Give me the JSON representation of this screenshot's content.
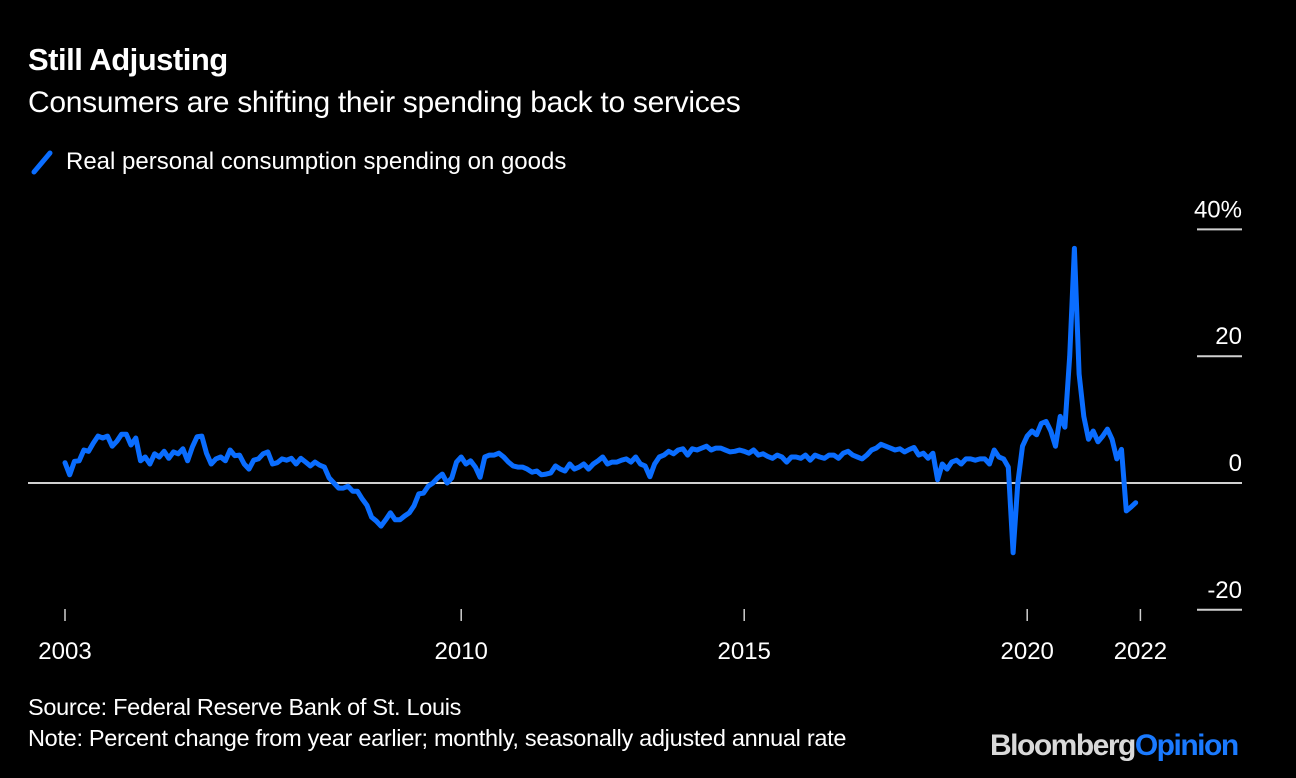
{
  "header": {
    "title": "Still Adjusting",
    "subtitle": "Consumers are shifting their spending back to services"
  },
  "footer": {
    "source": "Source: Federal Reserve Bank of St. Louis",
    "note": "Note: Percent change from year earlier; monthly, seasonally adjusted annual rate",
    "logo_part1": "Bloomberg",
    "logo_part2": "Opinion"
  },
  "colors": {
    "series": "#0a6dff",
    "background": "#000000",
    "axis": "#d0d0d0",
    "logo_accent": "#1a7aff"
  },
  "chart_data": {
    "type": "line",
    "title": "Still Adjusting",
    "subtitle": "Consumers are shifting their spending back to services",
    "xlabel": "",
    "ylabel": "",
    "y_unit": "%",
    "ylim": [
      -20,
      40
    ],
    "yticks": [
      40,
      20,
      0,
      -20
    ],
    "ytick_labels": [
      "40%",
      "20",
      "0",
      "-20"
    ],
    "xticks": [
      2003,
      2010,
      2015,
      2020,
      2022
    ],
    "xtick_labels": [
      "2003",
      "2010",
      "2015",
      "2020",
      "2022"
    ],
    "x_start": "2003-01",
    "x_frequency": "monthly",
    "legend_position": "top-left",
    "grid": false,
    "series": [
      {
        "name": "Real personal consumption spending on goods",
        "start": "2003-01",
        "values": [
          3.2,
          1.3,
          3.4,
          3.5,
          5.2,
          5.0,
          6.3,
          7.4,
          7.1,
          7.4,
          5.8,
          6.6,
          7.7,
          7.7,
          6.0,
          7.1,
          3.5,
          4.1,
          3.0,
          4.6,
          4.1,
          5.0,
          3.9,
          4.9,
          4.6,
          5.4,
          3.5,
          5.7,
          7.3,
          7.4,
          4.7,
          3.0,
          3.8,
          4.1,
          3.5,
          5.2,
          4.3,
          4.4,
          3.0,
          2.2,
          3.6,
          3.8,
          4.6,
          4.9,
          3.0,
          3.2,
          3.8,
          3.6,
          3.9,
          3.0,
          3.9,
          3.3,
          2.7,
          3.3,
          2.8,
          2.5,
          0.8,
          0.0,
          -0.8,
          -0.8,
          -0.5,
          -1.3,
          -1.3,
          -2.5,
          -3.5,
          -5.4,
          -6.0,
          -6.8,
          -5.8,
          -4.7,
          -5.8,
          -5.8,
          -5.2,
          -4.7,
          -3.6,
          -1.7,
          -1.6,
          -0.5,
          0.0,
          0.8,
          1.4,
          0.0,
          0.8,
          3.3,
          4.1,
          3.0,
          3.5,
          2.5,
          0.9,
          4.1,
          4.4,
          4.4,
          4.7,
          4.1,
          3.3,
          2.7,
          2.5,
          2.5,
          2.2,
          1.7,
          1.9,
          1.3,
          1.4,
          1.6,
          2.7,
          2.2,
          1.9,
          3.0,
          2.2,
          2.5,
          3.0,
          2.2,
          3.0,
          3.5,
          4.1,
          3.0,
          3.3,
          3.3,
          3.6,
          3.8,
          3.3,
          4.1,
          3.0,
          2.7,
          1.0,
          3.0,
          4.1,
          4.4,
          5.0,
          4.6,
          5.2,
          5.4,
          4.4,
          5.4,
          5.2,
          5.5,
          5.8,
          5.2,
          5.5,
          5.5,
          5.2,
          4.9,
          5.0,
          5.2,
          5.0,
          4.7,
          5.2,
          4.4,
          4.6,
          4.2,
          3.9,
          4.4,
          4.1,
          3.3,
          4.1,
          4.1,
          3.9,
          4.4,
          3.6,
          4.4,
          4.1,
          3.9,
          4.4,
          4.4,
          3.9,
          4.7,
          5.0,
          4.4,
          4.1,
          3.8,
          4.4,
          5.2,
          5.5,
          6.1,
          5.8,
          5.5,
          5.2,
          5.4,
          4.9,
          5.3,
          5.6,
          4.4,
          4.7,
          3.9,
          4.7,
          0.5,
          3.0,
          2.2,
          3.3,
          3.6,
          3.0,
          3.8,
          3.8,
          3.6,
          3.8,
          3.8,
          3.0,
          5.2,
          4.1,
          3.8,
          2.5,
          -11.0,
          0.0,
          5.8,
          7.4,
          8.2,
          7.6,
          9.4,
          9.7,
          8.2,
          5.8,
          10.5,
          8.8,
          20.0,
          37.0,
          17.2,
          10.5,
          6.9,
          8.2,
          6.5,
          7.4,
          8.5,
          6.9,
          3.8,
          5.3,
          -4.4,
          -3.8,
          -3.1
        ]
      }
    ]
  }
}
